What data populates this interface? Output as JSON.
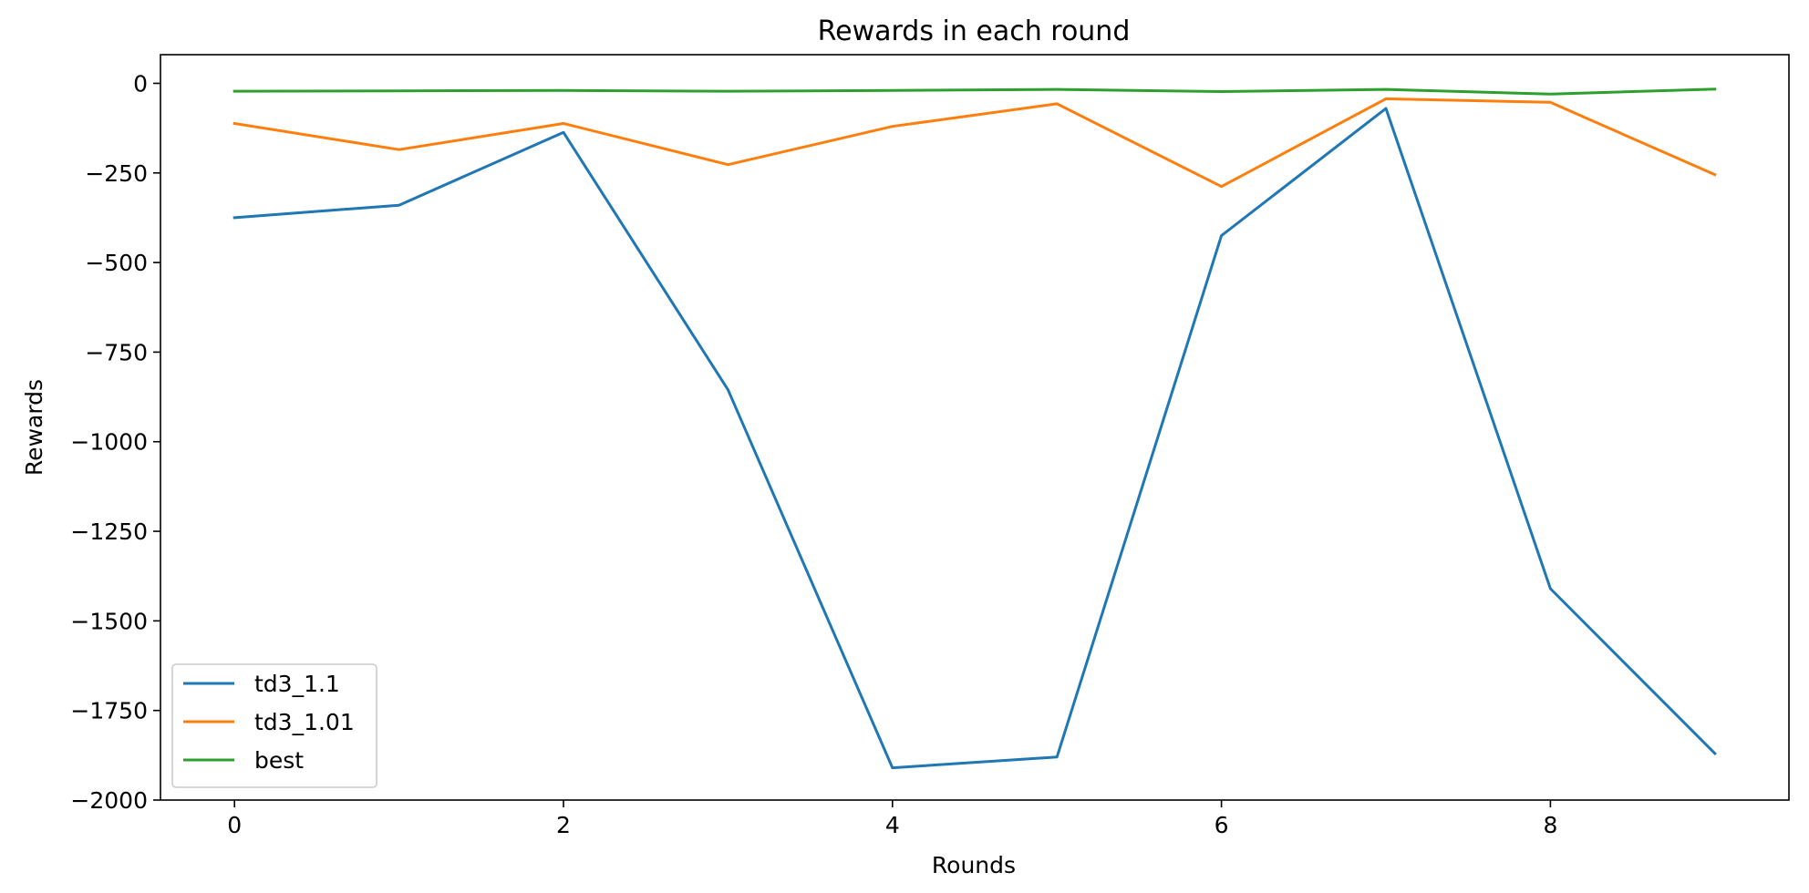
{
  "chart_data": {
    "type": "line",
    "title": "Rewards in each round",
    "xlabel": "Rounds",
    "ylabel": "Rewards",
    "x": [
      0,
      1,
      2,
      3,
      4,
      5,
      6,
      7,
      8,
      9
    ],
    "xlim": [
      -0.45,
      9.45
    ],
    "ylim": [
      -2000,
      80
    ],
    "xticks": [
      0,
      2,
      4,
      6,
      8
    ],
    "yticks": [
      0,
      -250,
      -500,
      -750,
      -1000,
      -1250,
      -1500,
      -1750,
      -2000
    ],
    "grid": false,
    "legend_position": "lower-left",
    "series": [
      {
        "name": "td3_1.1",
        "color": "#1f77b4",
        "values": [
          -375,
          -340,
          -137,
          -855,
          -1910,
          -1880,
          -425,
          -70,
          -1410,
          -1870
        ]
      },
      {
        "name": "td3_1.01",
        "color": "#ff7f0e",
        "values": [
          -112,
          -185,
          -112,
          -227,
          -120,
          -57,
          -288,
          -43,
          -53,
          -255
        ]
      },
      {
        "name": "best",
        "color": "#2ca02c",
        "values": [
          -22,
          -21,
          -20,
          -22,
          -20,
          -17,
          -23,
          -17,
          -30,
          -16
        ]
      }
    ]
  }
}
